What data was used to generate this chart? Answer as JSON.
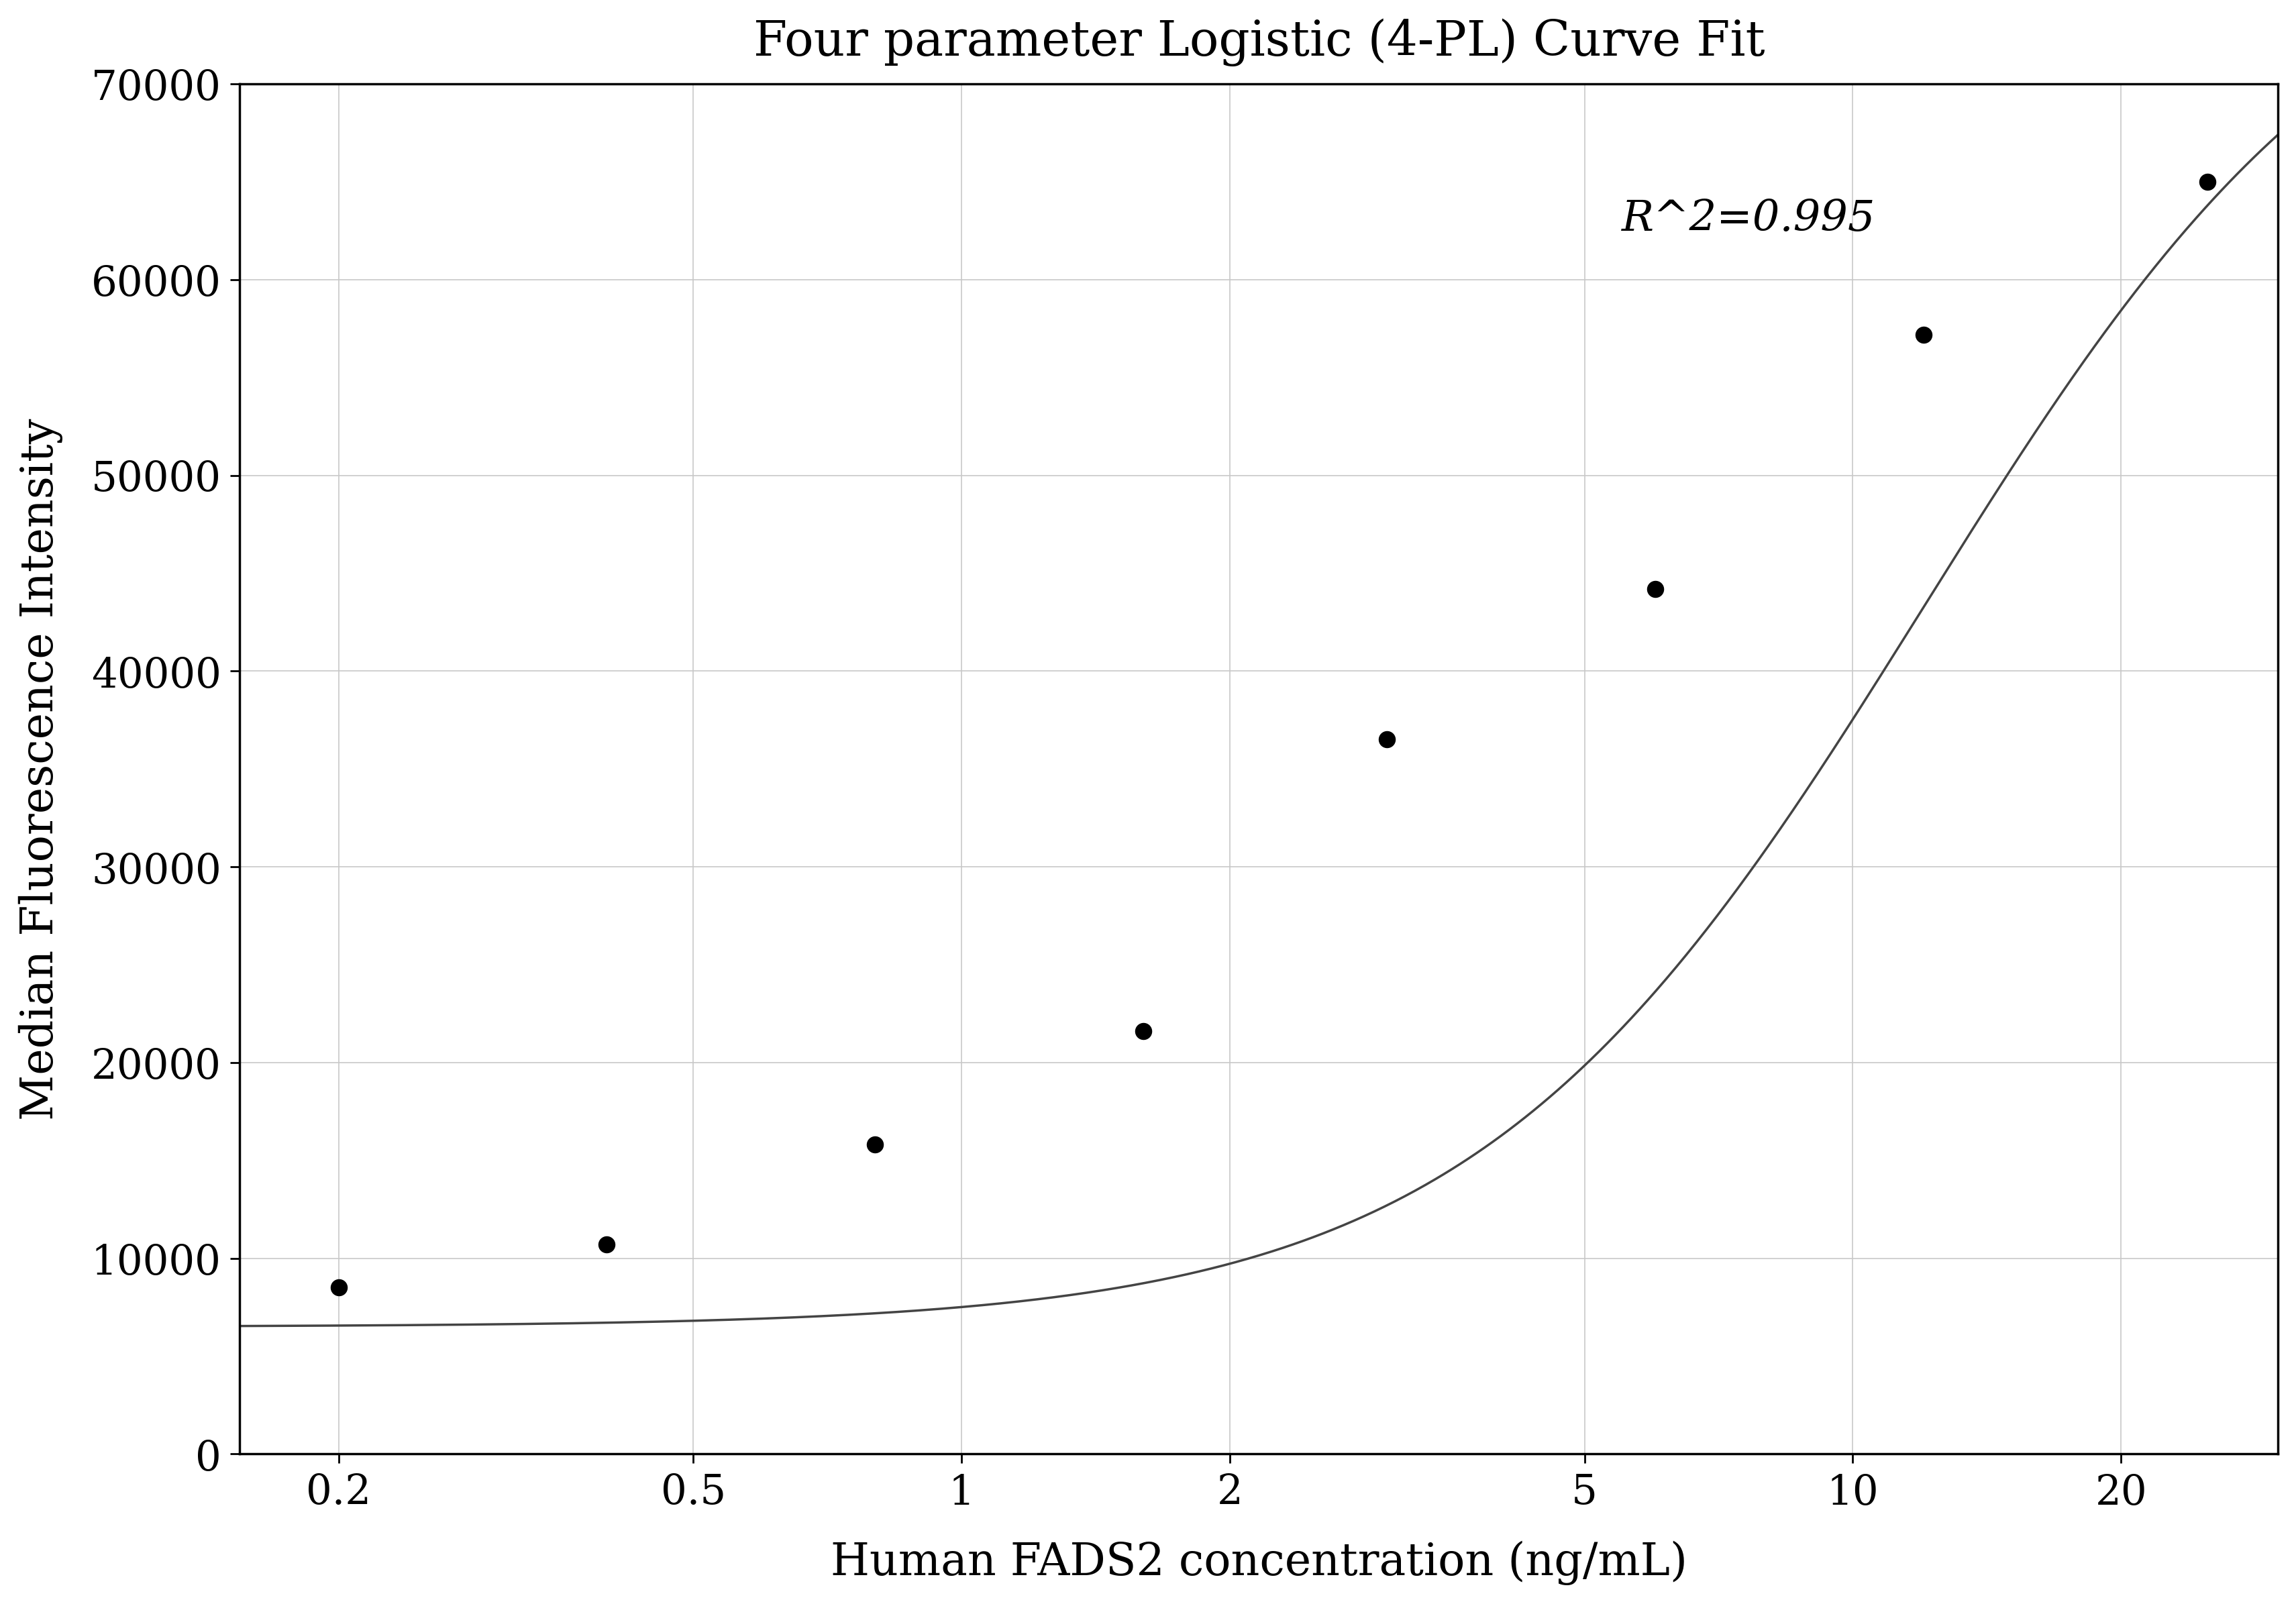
{
  "title": "Four parameter Logistic (4-PL) Curve Fit",
  "xlabel": "Human FADS2 concentration (ng/mL)",
  "ylabel": "Median Fluorescence Intensity",
  "scatter_x": [
    0.2,
    0.4,
    0.8,
    1.6,
    3.0,
    6.0,
    12.0,
    25.0
  ],
  "scatter_y": [
    8500,
    10700,
    15800,
    21600,
    36500,
    44200,
    57200,
    65000
  ],
  "r_squared_text": "R^2=0.995",
  "r_squared_x": 5.5,
  "r_squared_y": 62500,
  "ylim": [
    0,
    70000
  ],
  "yticks": [
    0,
    10000,
    20000,
    30000,
    40000,
    50000,
    60000,
    70000
  ],
  "xticks": [
    0.2,
    0.5,
    1,
    2,
    5,
    10,
    20
  ],
  "xmin": 0.155,
  "xmax": 30,
  "background_color": "#ffffff",
  "grid_color": "#c8c8c8",
  "scatter_color": "#000000",
  "line_color": "#444444",
  "title_fontsize": 52,
  "label_fontsize": 48,
  "tick_fontsize": 44,
  "annotation_fontsize": 46,
  "4pl_A": 6500,
  "4pl_B": 1.72,
  "4pl_C": 12.0,
  "4pl_D": 80000
}
